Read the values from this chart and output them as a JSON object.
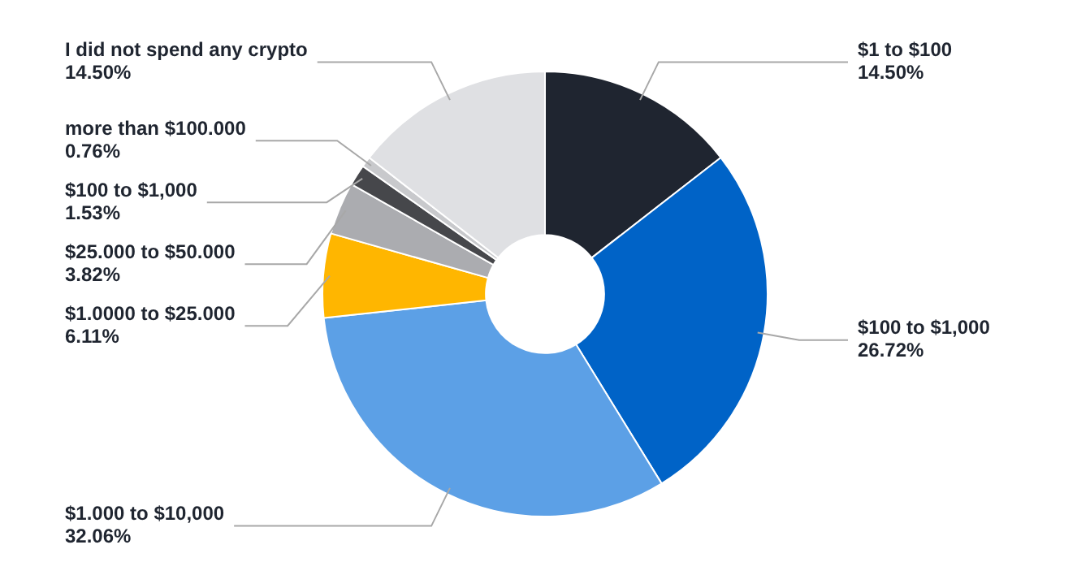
{
  "chart_data": {
    "type": "donut",
    "categories": [
      "$1 to $100",
      "$100 to $1,000",
      "$1.000 to $10,000",
      "$1.0000 to $25.000",
      "$25.000 to $50.000",
      "$100 to $1,000",
      "more than $100.000",
      "I did not spend any crypto"
    ],
    "values": [
      14.5,
      26.72,
      32.06,
      6.11,
      3.82,
      1.53,
      0.76,
      14.5
    ],
    "value_labels": [
      "14.50%",
      "26.72%",
      "32.06%",
      "6.11%",
      "3.82%",
      "1.53%",
      "0.76%",
      "14.50%"
    ],
    "colors": [
      "#1f2530",
      "#0063c7",
      "#5ca0e6",
      "#ffb600",
      "#abacb0",
      "#46474b",
      "#c8c9cc",
      "#dfe0e3"
    ],
    "legend": false
  }
}
